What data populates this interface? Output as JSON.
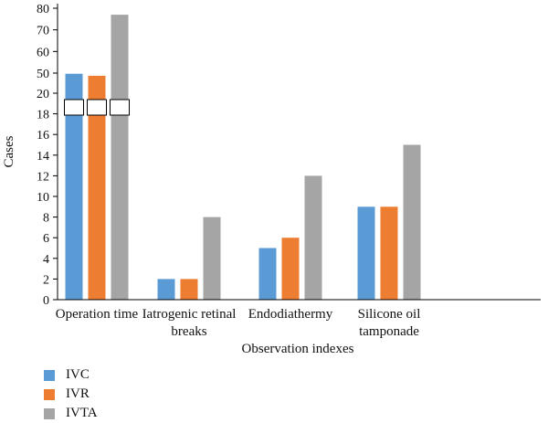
{
  "chart_data": {
    "type": "bar",
    "xlabel": "Observation indexes",
    "ylabel": "Cases",
    "categories": [
      [
        "Operation time"
      ],
      [
        "Iatrogenic retinal",
        "breaks"
      ],
      [
        "Endodiathermy"
      ],
      [
        "Silicone oil",
        "tamponade"
      ]
    ],
    "y_tick_labels": [
      "0",
      "2",
      "4",
      "6",
      "8",
      "10",
      "12",
      "14",
      "16",
      "18",
      "20",
      "50",
      "60",
      "70",
      "80"
    ],
    "axis_break": {
      "lower_segment_top": 20,
      "upper_segment_bottom": 50
    },
    "series": [
      {
        "name": "IVC",
        "color": "#5b9bd5",
        "values": [
          49,
          2,
          5,
          9
        ]
      },
      {
        "name": "IVR",
        "color": "#ed7d31",
        "values": [
          46,
          2,
          6,
          9
        ]
      },
      {
        "name": "IVTA",
        "color": "#a5a5a5",
        "values": [
          77,
          8,
          12,
          15
        ]
      }
    ],
    "legend_position": "bottom-left",
    "grid": false
  }
}
